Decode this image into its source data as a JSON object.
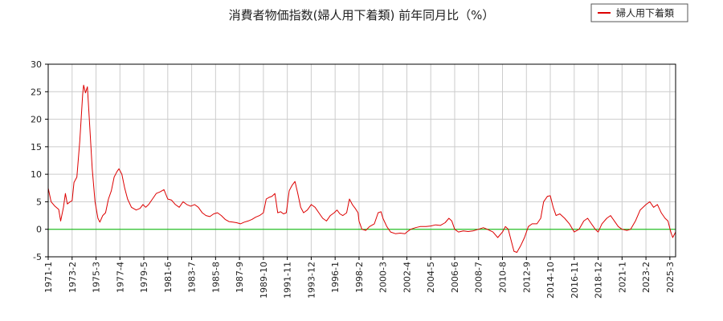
{
  "chart_data": {
    "type": "line",
    "title": "消費者物価指数(婦人用下着類) 前年同月比（%）",
    "xlabel": "",
    "ylabel": "",
    "ylim": [
      -5,
      30
    ],
    "yticks": [
      -5,
      0,
      5,
      10,
      15,
      20,
      25,
      30
    ],
    "xlim": [
      "1971-01",
      "2025-09"
    ],
    "xtick_labels": [
      "1971-1",
      "1973-2",
      "1975-3",
      "1977-4",
      "1979-5",
      "1981-6",
      "1983-7",
      "1985-8",
      "1987-9",
      "1989-10",
      "1991-11",
      "1993-12",
      "1996-1",
      "1998-2",
      "2000-3",
      "2002-4",
      "2004-5",
      "2006-6",
      "2008-7",
      "2010-8",
      "2012-9",
      "2014-10",
      "2016-11",
      "2018-12",
      "2021-1",
      "2023-2",
      "2025-3"
    ],
    "grid": true,
    "legend": "top-right",
    "reference_line": {
      "y": 0,
      "color": "#00bb00"
    },
    "series": [
      {
        "name": "婦人用下着類",
        "color": "#dd0000",
        "points": [
          [
            "1971-01",
            7.5
          ],
          [
            "1971-04",
            5.0
          ],
          [
            "1971-08",
            4.2
          ],
          [
            "1971-12",
            3.6
          ],
          [
            "1972-02",
            1.5
          ],
          [
            "1972-05",
            4.0
          ],
          [
            "1972-07",
            6.5
          ],
          [
            "1972-09",
            4.6
          ],
          [
            "1972-12",
            5.0
          ],
          [
            "1973-02",
            5.2
          ],
          [
            "1973-04",
            8.5
          ],
          [
            "1973-07",
            9.5
          ],
          [
            "1973-10",
            16.0
          ],
          [
            "1974-01",
            24.5
          ],
          [
            "1974-02",
            26.2
          ],
          [
            "1974-04",
            24.8
          ],
          [
            "1974-06",
            25.9
          ],
          [
            "1974-08",
            20.0
          ],
          [
            "1974-11",
            11.0
          ],
          [
            "1975-02",
            5.0
          ],
          [
            "1975-05",
            2.0
          ],
          [
            "1975-07",
            1.3
          ],
          [
            "1975-10",
            2.5
          ],
          [
            "1976-01",
            3.0
          ],
          [
            "1976-04",
            5.5
          ],
          [
            "1976-07",
            7.0
          ],
          [
            "1976-10",
            9.5
          ],
          [
            "1977-01",
            10.5
          ],
          [
            "1977-03",
            11.0
          ],
          [
            "1977-06",
            10.0
          ],
          [
            "1977-09",
            7.5
          ],
          [
            "1977-12",
            5.5
          ],
          [
            "1978-04",
            4.0
          ],
          [
            "1978-09",
            3.5
          ],
          [
            "1979-01",
            3.8
          ],
          [
            "1979-04",
            4.5
          ],
          [
            "1979-07",
            4.0
          ],
          [
            "1979-10",
            4.5
          ],
          [
            "1980-02",
            5.5
          ],
          [
            "1980-06",
            6.5
          ],
          [
            "1980-10",
            6.8
          ],
          [
            "1981-02",
            7.2
          ],
          [
            "1981-06",
            5.5
          ],
          [
            "1981-10",
            5.3
          ],
          [
            "1982-02",
            4.5
          ],
          [
            "1982-06",
            4.0
          ],
          [
            "1982-10",
            5.0
          ],
          [
            "1983-02",
            4.5
          ],
          [
            "1983-06",
            4.2
          ],
          [
            "1983-10",
            4.5
          ],
          [
            "1984-02",
            4.0
          ],
          [
            "1984-06",
            3.0
          ],
          [
            "1984-10",
            2.5
          ],
          [
            "1985-02",
            2.3
          ],
          [
            "1985-06",
            2.8
          ],
          [
            "1985-10",
            3.0
          ],
          [
            "1986-02",
            2.5
          ],
          [
            "1986-06",
            1.8
          ],
          [
            "1986-10",
            1.4
          ],
          [
            "1987-02",
            1.3
          ],
          [
            "1987-06",
            1.2
          ],
          [
            "1987-10",
            1.0
          ],
          [
            "1988-02",
            1.3
          ],
          [
            "1988-06",
            1.5
          ],
          [
            "1988-10",
            1.8
          ],
          [
            "1989-02",
            2.2
          ],
          [
            "1989-06",
            2.5
          ],
          [
            "1989-10",
            3.0
          ],
          [
            "1990-01",
            5.5
          ],
          [
            "1990-04",
            5.8
          ],
          [
            "1990-07",
            6.0
          ],
          [
            "1990-10",
            6.5
          ],
          [
            "1991-01",
            3.0
          ],
          [
            "1991-04",
            3.2
          ],
          [
            "1991-07",
            2.8
          ],
          [
            "1991-10",
            3.0
          ],
          [
            "1992-01",
            7.0
          ],
          [
            "1992-04",
            8.0
          ],
          [
            "1992-07",
            8.7
          ],
          [
            "1992-10",
            6.5
          ],
          [
            "1993-01",
            4.0
          ],
          [
            "1993-04",
            3.0
          ],
          [
            "1993-08",
            3.5
          ],
          [
            "1993-12",
            4.5
          ],
          [
            "1994-04",
            4.0
          ],
          [
            "1994-08",
            3.0
          ],
          [
            "1994-12",
            2.0
          ],
          [
            "1995-04",
            1.5
          ],
          [
            "1995-08",
            2.5
          ],
          [
            "1995-12",
            3.0
          ],
          [
            "1996-03",
            3.5
          ],
          [
            "1996-06",
            2.8
          ],
          [
            "1996-09",
            2.5
          ],
          [
            "1997-01",
            3.0
          ],
          [
            "1997-04",
            5.5
          ],
          [
            "1997-07",
            4.5
          ],
          [
            "1997-10",
            3.8
          ],
          [
            "1998-01",
            3.0
          ],
          [
            "1998-02",
            1.5
          ],
          [
            "1998-05",
            0.0
          ],
          [
            "1998-09",
            -0.2
          ],
          [
            "1999-01",
            0.5
          ],
          [
            "1999-06",
            1.0
          ],
          [
            "1999-10",
            3.0
          ],
          [
            "2000-01",
            3.2
          ],
          [
            "2000-03",
            2.0
          ],
          [
            "2000-07",
            0.5
          ],
          [
            "2000-11",
            -0.5
          ],
          [
            "2001-04",
            -0.8
          ],
          [
            "2001-09",
            -0.7
          ],
          [
            "2002-02",
            -0.8
          ],
          [
            "2002-04",
            -0.5
          ],
          [
            "2002-08",
            0.0
          ],
          [
            "2003-01",
            0.3
          ],
          [
            "2003-06",
            0.5
          ],
          [
            "2003-12",
            0.5
          ],
          [
            "2004-05",
            0.6
          ],
          [
            "2004-10",
            0.8
          ],
          [
            "2005-03",
            0.7
          ],
          [
            "2005-08",
            1.2
          ],
          [
            "2005-12",
            2.0
          ],
          [
            "2006-03",
            1.5
          ],
          [
            "2006-06",
            0.0
          ],
          [
            "2006-10",
            -0.5
          ],
          [
            "2007-03",
            -0.3
          ],
          [
            "2007-08",
            -0.4
          ],
          [
            "2008-01",
            -0.3
          ],
          [
            "2008-07",
            0.0
          ],
          [
            "2008-12",
            0.3
          ],
          [
            "2009-04",
            0.0
          ],
          [
            "2009-10",
            -0.5
          ],
          [
            "2010-03",
            -1.5
          ],
          [
            "2010-08",
            -0.5
          ],
          [
            "2010-11",
            0.5
          ],
          [
            "2011-02",
            0.0
          ],
          [
            "2011-05",
            -2.0
          ],
          [
            "2011-08",
            -4.0
          ],
          [
            "2011-11",
            -4.2
          ],
          [
            "2012-03",
            -3.0
          ],
          [
            "2012-07",
            -1.5
          ],
          [
            "2012-11",
            0.5
          ],
          [
            "2013-03",
            1.0
          ],
          [
            "2013-08",
            1.0
          ],
          [
            "2013-12",
            2.0
          ],
          [
            "2014-03",
            5.0
          ],
          [
            "2014-07",
            6.0
          ],
          [
            "2014-10",
            6.1
          ],
          [
            "2015-01",
            4.0
          ],
          [
            "2015-04",
            2.5
          ],
          [
            "2015-08",
            2.8
          ],
          [
            "2016-01",
            2.0
          ],
          [
            "2016-06",
            1.0
          ],
          [
            "2016-11",
            -0.5
          ],
          [
            "2017-04",
            0.0
          ],
          [
            "2017-09",
            1.5
          ],
          [
            "2018-01",
            2.0
          ],
          [
            "2018-05",
            1.0
          ],
          [
            "2018-09",
            0.0
          ],
          [
            "2018-12",
            -0.5
          ],
          [
            "2019-04",
            1.0
          ],
          [
            "2019-09",
            2.0
          ],
          [
            "2020-01",
            2.5
          ],
          [
            "2020-05",
            1.5
          ],
          [
            "2020-09",
            0.5
          ],
          [
            "2021-01",
            0.0
          ],
          [
            "2021-06",
            -0.2
          ],
          [
            "2021-10",
            0.0
          ],
          [
            "2022-03",
            1.5
          ],
          [
            "2022-08",
            3.5
          ],
          [
            "2023-02",
            4.5
          ],
          [
            "2023-06",
            5.0
          ],
          [
            "2023-10",
            4.0
          ],
          [
            "2024-02",
            4.5
          ],
          [
            "2024-06",
            3.0
          ],
          [
            "2024-10",
            2.0
          ],
          [
            "2025-01",
            1.5
          ],
          [
            "2025-04",
            -0.5
          ],
          [
            "2025-06",
            -1.5
          ],
          [
            "2025-09",
            -0.5
          ]
        ]
      }
    ]
  }
}
